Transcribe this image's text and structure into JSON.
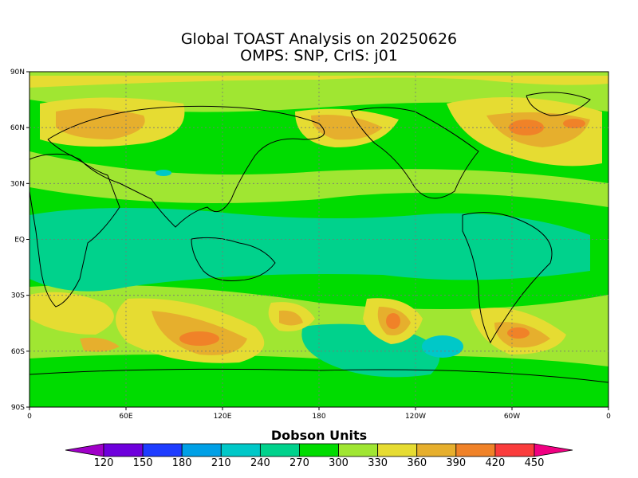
{
  "title": {
    "line1": "Global TOAST Analysis on 20250626",
    "line2": "OMPS: SNP, CrIS: j01"
  },
  "map": {
    "projection": "cylindrical-equidistant",
    "lon_range": [
      0,
      360
    ],
    "lat_range": [
      -90,
      90
    ],
    "lat_ticks": [
      {
        "label": "90N",
        "value": 90
      },
      {
        "label": "60N",
        "value": 60
      },
      {
        "label": "30N",
        "value": 30
      },
      {
        "label": "EQ",
        "value": 0
      },
      {
        "label": "30S",
        "value": -30
      },
      {
        "label": "60S",
        "value": -60
      },
      {
        "label": "90S",
        "value": -90
      }
    ],
    "lon_ticks": [
      {
        "label": "0",
        "value": 0
      },
      {
        "label": "60E",
        "value": 60
      },
      {
        "label": "120E",
        "value": 120
      },
      {
        "label": "180",
        "value": 180
      },
      {
        "label": "120W",
        "value": 240
      },
      {
        "label": "60W",
        "value": 300
      },
      {
        "label": "0",
        "value": 360
      }
    ],
    "grid": "dotted"
  },
  "colorbar": {
    "title": "Dobson Units",
    "levels": [
      "120",
      "150",
      "180",
      "210",
      "240",
      "270",
      "300",
      "330",
      "360",
      "390",
      "420",
      "450"
    ],
    "colors": [
      "#a000c8",
      "#6e00dc",
      "#1e3cff",
      "#00a0e6",
      "#00c8c8",
      "#00d28c",
      "#00dc00",
      "#a0e632",
      "#e6dc32",
      "#e6af2d",
      "#f08228",
      "#fa3c3c",
      "#f00082"
    ]
  }
}
